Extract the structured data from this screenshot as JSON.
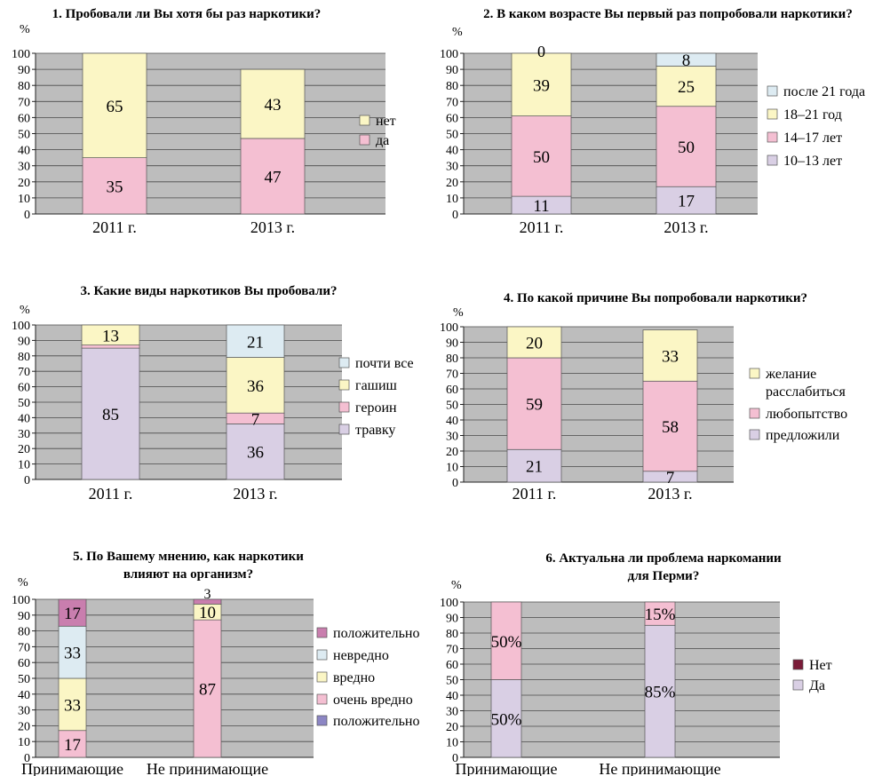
{
  "colors": {
    "plot_bg": "#bdbdbd",
    "grid": "#4a4a4a",
    "yes": "#f4bfd2",
    "no": "#fbf6c5",
    "lavender": "#d9cfe4",
    "pink": "#f4bfd2",
    "yellow": "#fbf6c5",
    "lightblue": "#ddebf2",
    "magenta": "#c97eae",
    "blueviolet": "#8c86c4",
    "darkred": "#7a1b38"
  },
  "chart_data": [
    {
      "type": "bar",
      "stacked": true,
      "title": "1. Пробовали ли Вы хотя бы раз наркотики?",
      "ylabel": "%",
      "ylim": [
        0,
        100
      ],
      "yticks": [
        "0",
        "10",
        "20",
        "30",
        "40",
        "50",
        "60",
        "70",
        "80",
        "90",
        "100"
      ],
      "categories": [
        "2011 г.",
        "2013 г."
      ],
      "legend": "right",
      "series": [
        {
          "name": "да",
          "color": "#f4bfd2",
          "values": [
            35,
            47
          ],
          "labels": [
            "35",
            "47"
          ]
        },
        {
          "name": "нет",
          "color": "#fbf6c5",
          "values": [
            65,
            43
          ],
          "labels": [
            "65",
            "43"
          ]
        }
      ]
    },
    {
      "type": "bar",
      "stacked": true,
      "title": "2. В каком возрасте Вы первый раз попробовали наркотики?",
      "ylabel": "%",
      "ylim": [
        0,
        100
      ],
      "yticks": [
        "0",
        "10",
        "20",
        "30",
        "40",
        "50",
        "60",
        "70",
        "80",
        "90",
        "100"
      ],
      "categories": [
        "2011 г.",
        "2013 г."
      ],
      "legend": "right",
      "series": [
        {
          "name": "10–13 лет",
          "color": "#d9cfe4",
          "values": [
            11,
            17
          ],
          "labels": [
            "11",
            "17"
          ]
        },
        {
          "name": "14–17 лет",
          "color": "#f4bfd2",
          "values": [
            50,
            50
          ],
          "labels": [
            "50",
            "50"
          ]
        },
        {
          "name": "18–21 год",
          "color": "#fbf6c5",
          "values": [
            39,
            25
          ],
          "labels": [
            "39",
            "25"
          ]
        },
        {
          "name": "после 21 года",
          "color": "#ddebf2",
          "values": [
            0,
            8
          ],
          "labels": [
            "0",
            "8"
          ]
        }
      ]
    },
    {
      "type": "bar",
      "stacked": true,
      "title": "3. Какие виды наркотиков Вы пробовали?",
      "ylabel": "%",
      "ylim": [
        0,
        100
      ],
      "yticks": [
        "0",
        "10",
        "20",
        "30",
        "40",
        "50",
        "60",
        "70",
        "80",
        "90",
        "100"
      ],
      "categories": [
        "2011 г.",
        "2013 г."
      ],
      "legend": "right",
      "series": [
        {
          "name": "травку",
          "color": "#d9cfe4",
          "values": [
            85,
            36
          ],
          "labels": [
            "85",
            "36"
          ]
        },
        {
          "name": "героин",
          "color": "#f4bfd2",
          "values": [
            2,
            7
          ],
          "labels": [
            "2",
            "7"
          ]
        },
        {
          "name": "гашиш",
          "color": "#fbf6c5",
          "values": [
            13,
            36
          ],
          "labels": [
            "13",
            "36"
          ]
        },
        {
          "name": "почти все",
          "color": "#ddebf2",
          "values": [
            0,
            21
          ],
          "labels": [
            "",
            "21"
          ]
        }
      ]
    },
    {
      "type": "bar",
      "stacked": true,
      "title": "4. По какой причине Вы попробовали наркотики?",
      "ylabel": "%",
      "ylim": [
        0,
        100
      ],
      "yticks": [
        "0",
        "10",
        "20",
        "30",
        "40",
        "50",
        "60",
        "70",
        "80",
        "90",
        "100"
      ],
      "categories": [
        "2011 г.",
        "2013 г."
      ],
      "legend": "right",
      "series": [
        {
          "name": "предложили",
          "color": "#d9cfe4",
          "values": [
            21,
            7
          ],
          "labels": [
            "21",
            "7"
          ]
        },
        {
          "name": "любопытство",
          "color": "#f4bfd2",
          "values": [
            59,
            58
          ],
          "labels": [
            "59",
            "58"
          ]
        },
        {
          "name": "желание расслабиться",
          "color": "#fbf6c5",
          "values": [
            20,
            33
          ],
          "labels": [
            "20",
            "33"
          ]
        }
      ]
    },
    {
      "type": "bar",
      "stacked": true,
      "title": "5. По Вашему мнению, как наркотики влияют на организм?",
      "ylabel": "%",
      "ylim": [
        0,
        100
      ],
      "yticks": [
        "0",
        "10",
        "20",
        "30",
        "40",
        "50",
        "60",
        "70",
        "80",
        "90",
        "100"
      ],
      "categories": [
        "Принимающие",
        "Не принимающие"
      ],
      "legend": "right",
      "series": [
        {
          "name": "положительно",
          "color": "#8c86c4",
          "values": [
            0,
            0
          ],
          "labels": [
            "",
            ""
          ]
        },
        {
          "name": "очень вредно",
          "color": "#f4bfd2",
          "values": [
            17,
            87
          ],
          "labels": [
            "17",
            "87"
          ]
        },
        {
          "name": "вредно",
          "color": "#fbf6c5",
          "values": [
            33,
            10
          ],
          "labels": [
            "33",
            "10"
          ]
        },
        {
          "name": "невредно",
          "color": "#ddebf2",
          "values": [
            33,
            0
          ],
          "labels": [
            "33",
            ""
          ]
        },
        {
          "name": "положительно",
          "color": "#c97eae",
          "values": [
            17,
            3
          ],
          "labels": [
            "17",
            "3"
          ]
        }
      ]
    },
    {
      "type": "bar",
      "stacked": true,
      "title": "6. Актуальна ли проблема наркомании для Перми?",
      "ylabel": "%",
      "ylim": [
        0,
        100
      ],
      "yticks": [
        "0",
        "10",
        "20",
        "30",
        "40",
        "50",
        "60",
        "70",
        "80",
        "90",
        "100"
      ],
      "categories": [
        "Принимающие",
        "Не принимающие"
      ],
      "legend": "right",
      "series": [
        {
          "name": "Да",
          "color": "#d9cfe4",
          "values": [
            50,
            85
          ],
          "labels": [
            "50%",
            "85%"
          ]
        },
        {
          "name": "Нет",
          "color": "#f4bfd2",
          "values": [
            50,
            15
          ],
          "labels": [
            "50%",
            "15%"
          ]
        }
      ]
    }
  ]
}
